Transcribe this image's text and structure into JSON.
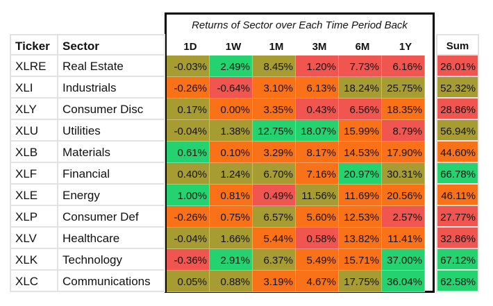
{
  "returns_title": "Returns of Sector over Each Time Period Back",
  "headers": {
    "ticker": "Ticker",
    "sector": "Sector",
    "periods": [
      "1D",
      "1W",
      "1M",
      "3M",
      "6M",
      "1Y"
    ],
    "sum": "Sum"
  },
  "colors": {
    "red": "#f0554f",
    "orange": "#fa7218",
    "olive": "#a69c31",
    "green": "#24d36f"
  },
  "rows": [
    {
      "ticker": "XLRE",
      "sector": "Real Estate",
      "returns": [
        "-0.03%",
        "2.49%",
        "8.45%",
        "1.20%",
        "7.73%",
        "6.16%"
      ],
      "return_colors": [
        "olive",
        "green",
        "olive",
        "red",
        "red",
        "red"
      ],
      "sum": "26.01%",
      "sum_color": "red"
    },
    {
      "ticker": "XLI",
      "sector": "Industrials",
      "returns": [
        "-0.26%",
        "-0.64%",
        "3.10%",
        "6.13%",
        "18.24%",
        "25.75%"
      ],
      "return_colors": [
        "orange",
        "red",
        "orange",
        "orange",
        "olive",
        "olive"
      ],
      "sum": "52.32%",
      "sum_color": "olive"
    },
    {
      "ticker": "XLY",
      "sector": "Consumer Disc",
      "returns": [
        "0.17%",
        "0.00%",
        "3.35%",
        "0.43%",
        "6.56%",
        "18.35%"
      ],
      "return_colors": [
        "olive",
        "orange",
        "orange",
        "red",
        "red",
        "orange"
      ],
      "sum": "28.86%",
      "sum_color": "red"
    },
    {
      "ticker": "XLU",
      "sector": "Utilities",
      "returns": [
        "-0.04%",
        "1.38%",
        "12.75%",
        "18.07%",
        "15.99%",
        "8.79%"
      ],
      "return_colors": [
        "olive",
        "olive",
        "green",
        "green",
        "orange",
        "red"
      ],
      "sum": "56.94%",
      "sum_color": "olive"
    },
    {
      "ticker": "XLB",
      "sector": "Materials",
      "returns": [
        "0.61%",
        "0.10%",
        "3.29%",
        "8.17%",
        "14.53%",
        "17.90%"
      ],
      "return_colors": [
        "green",
        "orange",
        "orange",
        "orange",
        "orange",
        "orange"
      ],
      "sum": "44.60%",
      "sum_color": "orange"
    },
    {
      "ticker": "XLF",
      "sector": "Financial",
      "returns": [
        "0.40%",
        "1.24%",
        "6.70%",
        "7.16%",
        "20.97%",
        "30.31%"
      ],
      "return_colors": [
        "olive",
        "olive",
        "olive",
        "orange",
        "green",
        "olive"
      ],
      "sum": "66.78%",
      "sum_color": "green"
    },
    {
      "ticker": "XLE",
      "sector": "Energy",
      "returns": [
        "1.00%",
        "0.81%",
        "0.49%",
        "11.56%",
        "11.69%",
        "20.56%"
      ],
      "return_colors": [
        "green",
        "orange",
        "red",
        "olive",
        "orange",
        "orange"
      ],
      "sum": "46.11%",
      "sum_color": "orange"
    },
    {
      "ticker": "XLP",
      "sector": "Consumer Def",
      "returns": [
        "-0.26%",
        "0.75%",
        "6.57%",
        "5.60%",
        "12.53%",
        "2.57%"
      ],
      "return_colors": [
        "orange",
        "orange",
        "olive",
        "orange",
        "orange",
        "red"
      ],
      "sum": "27.77%",
      "sum_color": "red"
    },
    {
      "ticker": "XLV",
      "sector": "Healthcare",
      "returns": [
        "-0.04%",
        "1.66%",
        "5.44%",
        "0.58%",
        "13.82%",
        "11.41%"
      ],
      "return_colors": [
        "olive",
        "olive",
        "orange",
        "red",
        "orange",
        "orange"
      ],
      "sum": "32.86%",
      "sum_color": "red"
    },
    {
      "ticker": "XLK",
      "sector": "Technology",
      "returns": [
        "-0.36%",
        "2.91%",
        "6.37%",
        "5.49%",
        "15.71%",
        "37.00%"
      ],
      "return_colors": [
        "red",
        "green",
        "olive",
        "orange",
        "orange",
        "green"
      ],
      "sum": "67.12%",
      "sum_color": "green"
    },
    {
      "ticker": "XLC",
      "sector": "Communications",
      "returns": [
        "0.05%",
        "0.88%",
        "3.19%",
        "4.67%",
        "17.75%",
        "36.04%"
      ],
      "return_colors": [
        "olive",
        "olive",
        "orange",
        "orange",
        "olive",
        "green"
      ],
      "sum": "62.58%",
      "sum_color": "green"
    }
  ]
}
